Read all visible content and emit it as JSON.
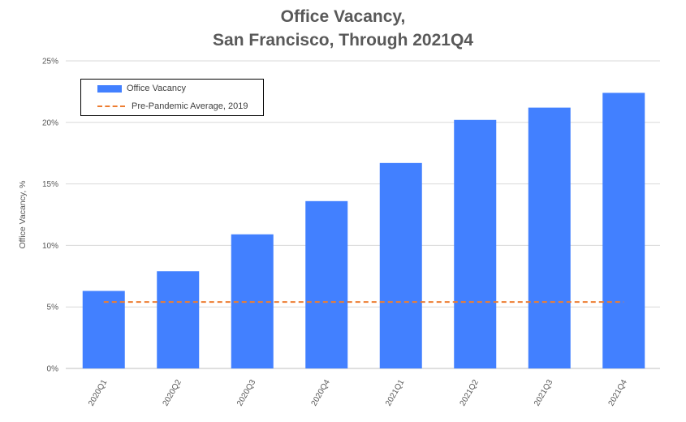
{
  "chart_data": {
    "type": "bar",
    "title_lines": [
      "Office Vacancy,",
      "San Francisco, Through 2021Q4"
    ],
    "xlabel": "",
    "ylabel": "Office Vacancy, %",
    "ylim": [
      0,
      25
    ],
    "yticks": [
      0,
      5,
      10,
      15,
      20,
      25
    ],
    "ytick_labels": [
      "0%",
      "5%",
      "10%",
      "15%",
      "20%",
      "25%"
    ],
    "categories": [
      "2020Q1",
      "2020Q2",
      "2020Q3",
      "2020Q4",
      "2021Q1",
      "2021Q2",
      "2021Q3",
      "2021Q4"
    ],
    "series": [
      {
        "name": "Office Vacancy",
        "type": "bar",
        "color": "#4280ff",
        "values": [
          6.3,
          7.9,
          10.9,
          13.6,
          16.7,
          20.2,
          21.2,
          22.4
        ]
      },
      {
        "name": "Pre-Pandemic Average, 2019",
        "type": "line",
        "style": "dashed",
        "color": "#ed7d31",
        "value": 5.4
      }
    ],
    "grid": true,
    "legend_position": "top-left"
  }
}
